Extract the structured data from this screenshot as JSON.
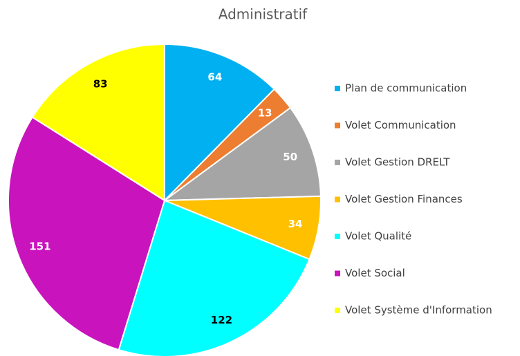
{
  "chart_data": {
    "type": "pie",
    "title": "Administratif",
    "categories": [
      "Plan de communication",
      "Volet Communication",
      "Volet Gestion DRELT",
      "Volet Gestion Finances",
      "Volet Qualité",
      "Volet Social",
      "Volet Système d'Information"
    ],
    "values": [
      64,
      13,
      50,
      34,
      122,
      151,
      83
    ],
    "colors": [
      "#00b0f0",
      "#ed7d31",
      "#a5a5a5",
      "#ffc000",
      "#00ffff",
      "#c913bd",
      "#ffff00"
    ],
    "label_colors": [
      "#ffffff",
      "#ffffff",
      "#ffffff",
      "#ffffff",
      "#000000",
      "#ffffff",
      "#000000"
    ],
    "legend": "right"
  }
}
